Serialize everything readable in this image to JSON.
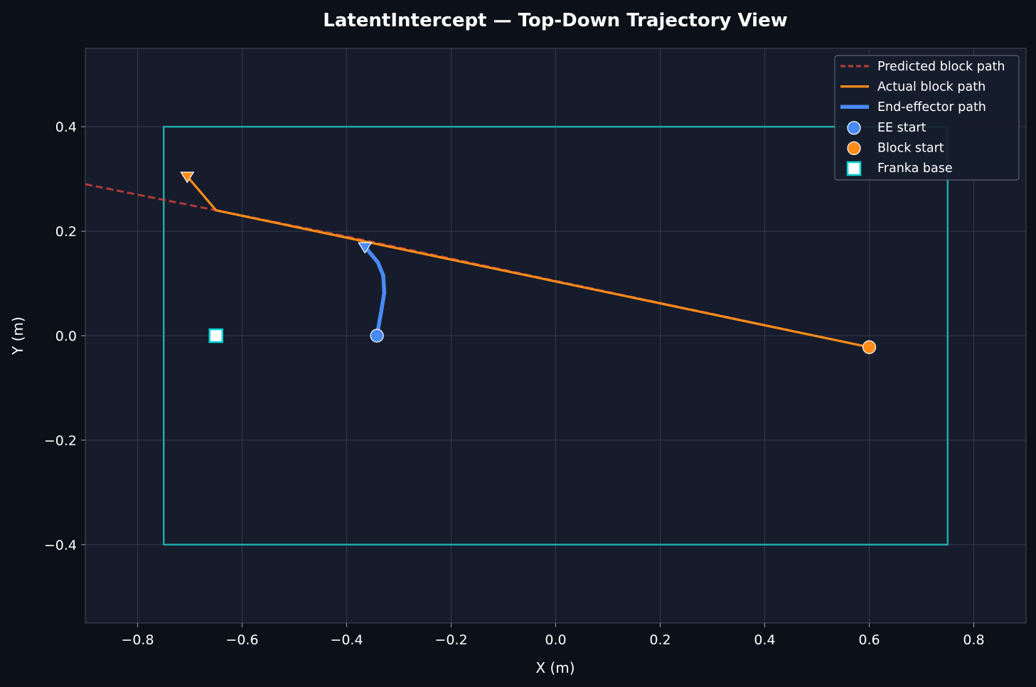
{
  "chart_data": {
    "type": "line",
    "title": "LatentIntercept — Top-Down Trajectory View",
    "xlabel": "X (m)",
    "ylabel": "Y (m)",
    "xlim": [
      -0.9,
      0.9
    ],
    "ylim": [
      -0.55,
      0.55
    ],
    "grid": true,
    "legend_position": "top-right",
    "x_ticks": [
      -0.8,
      -0.6,
      -0.4,
      -0.2,
      0.0,
      0.2,
      0.4,
      0.6,
      0.8
    ],
    "x_tick_labels": [
      "−0.8",
      "−0.6",
      "−0.4",
      "−0.2",
      "0.0",
      "0.2",
      "0.4",
      "0.6",
      "0.8"
    ],
    "y_ticks": [
      0.4,
      0.2,
      0.0,
      -0.2,
      -0.4
    ],
    "y_tick_labels": [
      "0.4",
      "0.2",
      "0.0",
      "−0.2",
      "−0.4"
    ],
    "workspace_bounds": {
      "x": [
        -0.75,
        0.75
      ],
      "y": [
        -0.4,
        0.4
      ]
    },
    "series": [
      {
        "name": "Predicted block path",
        "style": "dashed",
        "color": "#e0443e",
        "points": [
          [
            -0.9,
            0.29
          ],
          [
            -0.65,
            0.24
          ],
          [
            -0.4,
            0.19
          ],
          [
            0.0,
            0.105
          ],
          [
            0.6,
            -0.022
          ]
        ]
      },
      {
        "name": "Actual block path",
        "style": "solid",
        "color": "#ff8c1a",
        "points": [
          [
            0.6,
            -0.022
          ],
          [
            -0.65,
            0.24
          ],
          [
            -0.705,
            0.305
          ]
        ]
      },
      {
        "name": "End-effector path",
        "style": "solid",
        "color": "#4a8af4",
        "points": [
          [
            -0.342,
            0.0
          ],
          [
            -0.334,
            0.045
          ],
          [
            -0.328,
            0.082
          ],
          [
            -0.33,
            0.115
          ],
          [
            -0.34,
            0.14
          ],
          [
            -0.35,
            0.152
          ],
          [
            -0.365,
            0.17
          ]
        ]
      }
    ],
    "markers": [
      {
        "name": "EE start",
        "shape": "circle",
        "color": "#4a8af4",
        "x": -0.342,
        "y": 0.0
      },
      {
        "name": "Block start",
        "shape": "circle",
        "color": "#ff8c1a",
        "x": 0.6,
        "y": -0.022
      },
      {
        "name": "Franka base",
        "shape": "square",
        "color": "#ffffff",
        "edge": "#00d4d4",
        "x": -0.65,
        "y": 0.0
      }
    ],
    "end_markers": [
      {
        "shape": "triangle-down",
        "color": "#ff8c1a",
        "x": -0.705,
        "y": 0.305
      },
      {
        "shape": "triangle-down",
        "color": "#4a8af4",
        "x": -0.365,
        "y": 0.17
      }
    ],
    "legend": [
      {
        "label": "Predicted block path",
        "kind": "dashed",
        "color": "#e0443e"
      },
      {
        "label": "Actual block path",
        "kind": "line",
        "color": "#ff8c1a"
      },
      {
        "label": "End-effector path",
        "kind": "thick-line",
        "color": "#4a8af4"
      },
      {
        "label": "EE start",
        "kind": "circle",
        "color": "#4a8af4"
      },
      {
        "label": "Block start",
        "kind": "circle",
        "color": "#ff8c1a"
      },
      {
        "label": "Franka base",
        "kind": "square",
        "color": "#ffffff",
        "edge": "#00d4d4"
      }
    ],
    "colors": {
      "figure_bg": "#0c1018",
      "axes_bg": "#161c2b",
      "grid": "#3a4252",
      "text": "#ffffff",
      "workspace": "#1fa9a9"
    }
  }
}
